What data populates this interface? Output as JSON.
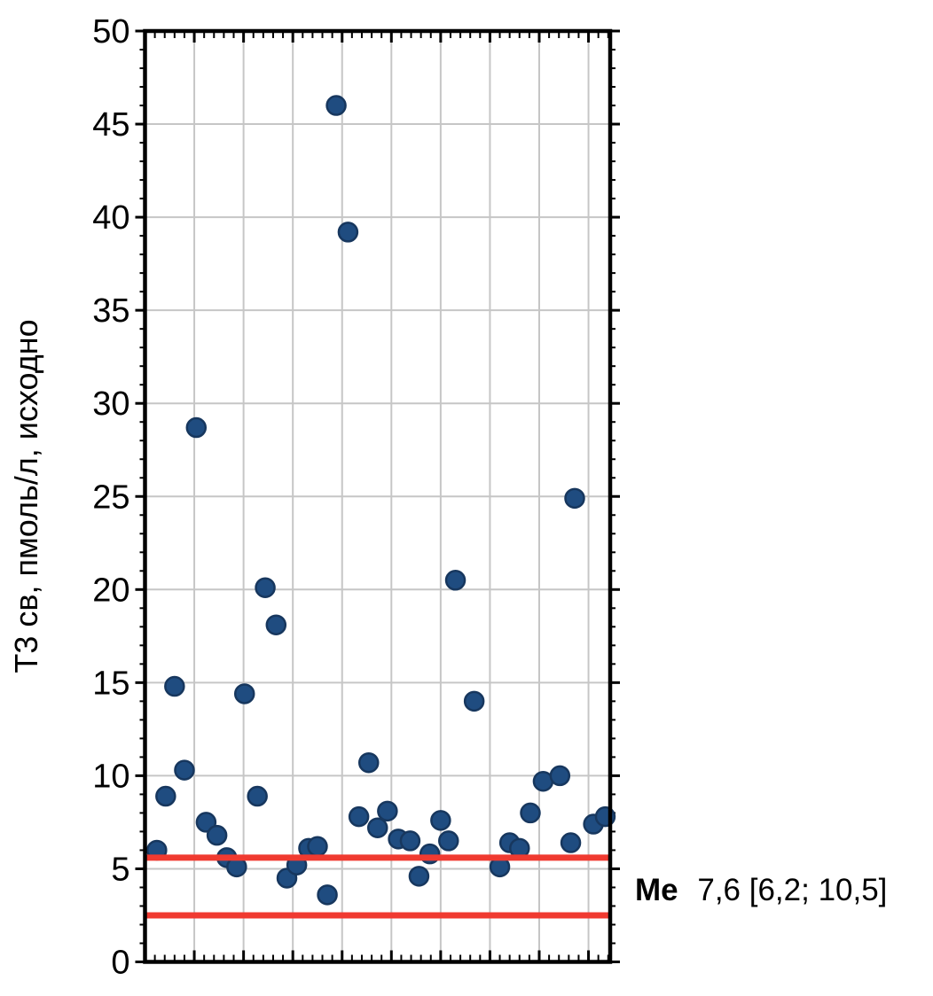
{
  "chart_data": {
    "type": "scatter",
    "title": "",
    "xlabel": "",
    "ylabel": "Т3 св, пмоль/л, исходно",
    "xlim": [
      0,
      47.2
    ],
    "ylim": [
      0,
      50
    ],
    "grid": "on",
    "legend": "none",
    "x_axis": {
      "tick_labels_visible": false,
      "major_step": 5,
      "minor_step": 1
    },
    "y_axis": {
      "major_step": 5,
      "minor_step": 1,
      "tick_labels": [
        "0",
        "5",
        "10",
        "15",
        "20",
        "25",
        "30",
        "35",
        "40",
        "45",
        "50"
      ]
    },
    "points": [
      [
        1.2,
        6.0
      ],
      [
        2.1,
        8.9
      ],
      [
        3.0,
        14.8
      ],
      [
        4.0,
        10.3
      ],
      [
        5.2,
        28.7
      ],
      [
        6.2,
        7.5
      ],
      [
        7.3,
        6.8
      ],
      [
        8.3,
        5.6
      ],
      [
        9.3,
        5.1
      ],
      [
        10.1,
        14.4
      ],
      [
        11.4,
        8.9
      ],
      [
        12.2,
        20.1
      ],
      [
        13.3,
        18.1
      ],
      [
        14.4,
        4.5
      ],
      [
        15.4,
        5.2
      ],
      [
        16.6,
        6.1
      ],
      [
        17.5,
        6.2
      ],
      [
        18.5,
        3.6
      ],
      [
        19.4,
        46.0
      ],
      [
        20.6,
        39.2
      ],
      [
        21.7,
        7.8
      ],
      [
        22.7,
        10.7
      ],
      [
        23.6,
        7.2
      ],
      [
        24.6,
        8.1
      ],
      [
        25.7,
        6.6
      ],
      [
        26.9,
        6.5
      ],
      [
        27.8,
        4.6
      ],
      [
        28.9,
        5.8
      ],
      [
        30.0,
        7.6
      ],
      [
        30.8,
        6.5
      ],
      [
        31.5,
        20.5
      ],
      [
        33.4,
        14.0
      ],
      [
        36.0,
        5.1
      ],
      [
        37.0,
        6.4
      ],
      [
        38.0,
        6.1
      ],
      [
        39.1,
        8.0
      ],
      [
        40.4,
        9.7
      ],
      [
        42.1,
        10.0
      ],
      [
        43.2,
        6.4
      ],
      [
        43.6,
        24.9
      ],
      [
        45.5,
        7.4
      ],
      [
        46.7,
        7.8
      ]
    ],
    "reference_lines": [
      {
        "y": 5.6,
        "color": "#F03A30"
      },
      {
        "y": 2.5,
        "color": "#F03A30"
      }
    ],
    "annotation": {
      "bold_prefix": "Ме",
      "text": "7,6 [6,2; 10,5]"
    },
    "colors": {
      "point_fill": "#1F4C80",
      "point_stroke": "#17375E",
      "grid": "#C6C6C6",
      "axis": "#000000",
      "reference": "#F03A30"
    }
  }
}
